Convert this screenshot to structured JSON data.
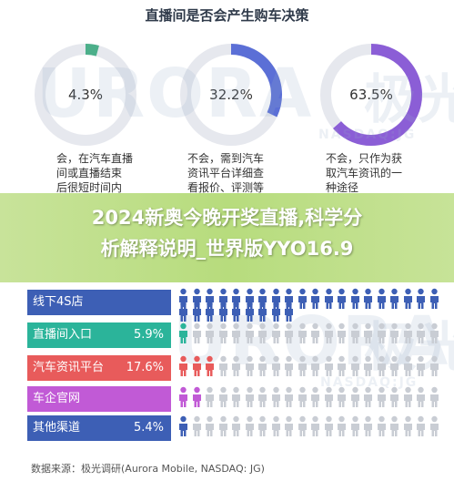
{
  "chart_data": [
    {
      "type": "pie",
      "title": "直播间是否会产生购车决策",
      "items": [
        {
          "value": "4.3%",
          "fraction": 0.043,
          "color": "#4caf8a",
          "caption": [
            "会，在汽车直播",
            "间或直播结束",
            "后很短时间内"
          ]
        },
        {
          "value": "32.2%",
          "fraction": 0.322,
          "color": "#5b6fd6",
          "caption": [
            "不会，需到汽车",
            "资讯平台详细查",
            "看报价、评测等"
          ]
        },
        {
          "value": "63.5%",
          "fraction": 0.635,
          "color": "#8b5ed6",
          "caption": [
            "不会，只作为获",
            "取汽车资讯的一",
            "种途径"
          ]
        }
      ]
    },
    {
      "type": "bar",
      "categories": [
        "线下4S店",
        "直播间入口",
        "汽车资讯平台",
        "车企官网",
        "其他渠道"
      ],
      "labels": [
        "",
        "5.9%",
        "17.6%",
        "",
        "5.4%"
      ],
      "colors": [
        "#3d5fb5",
        "#2bb49a",
        "#e85b5b",
        "#c15ad6",
        "#3d5fb5"
      ],
      "icon_counts": [
        [
          17,
          12
        ],
        [
          1,
          0
        ],
        [
          3,
          0
        ],
        [
          2,
          0
        ],
        [
          1,
          0
        ]
      ]
    }
  ],
  "headline": {
    "line1": "2024新奥今晚开奖直播,科学分",
    "line2": "析解释说明_世界版YYO16.9"
  },
  "watermark": {
    "brand": "URORA",
    "cn": "极光",
    "ticker": "NASDAQ:JG"
  },
  "source": "数据来源：极光调研(Aurora Mobile, NASDAQ: JG)",
  "colors": {
    "ring_bg": "#e6e8ee",
    "icon_gray": "#c9cdd4",
    "icon_blue": "#3d5fb5"
  }
}
